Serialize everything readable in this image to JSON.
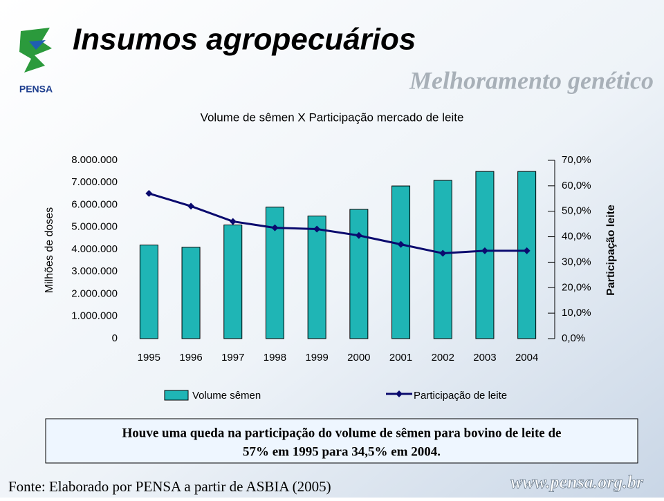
{
  "header": {
    "title": "Insumos agropecuários",
    "subtitle": "Melhoramento genético",
    "logo": "PENSA"
  },
  "chart_data": {
    "type": "bar",
    "title": "Volume de sêmen X Participação mercado de leite",
    "categories": [
      "1995",
      "1996",
      "1997",
      "1998",
      "1999",
      "2000",
      "2001",
      "2002",
      "2003",
      "2004"
    ],
    "series": [
      {
        "name": "Volume sêmen",
        "type": "bar",
        "color": "#1fb5b5",
        "values": [
          4200000,
          4100000,
          5100000,
          5900000,
          5500000,
          5800000,
          6850000,
          7100000,
          7500000,
          7500000
        ]
      },
      {
        "name": "Participação de leite",
        "type": "line",
        "axis": "y2",
        "color": "#0a0a6e",
        "values": [
          57,
          52,
          46,
          43.5,
          43,
          40.5,
          37,
          33.5,
          34.5,
          34.5
        ]
      }
    ],
    "y_label": "Milhões de doses",
    "y2_label": "Participação leite",
    "ylim": [
      0,
      8000000
    ],
    "yticks": [
      0,
      {
        "value": 1000000,
        "label": "1.000.000"
      },
      {
        "value": 2000000,
        "label": "2.000.000"
      },
      {
        "value": 3000000,
        "label": "3.000.000"
      },
      {
        "value": 4000000,
        "label": "4.000.000"
      },
      {
        "value": 5000000,
        "label": "5.000.000"
      },
      {
        "value": 6000000,
        "label": "6.000.000"
      },
      {
        "value": 7000000,
        "label": "7.000.000"
      },
      {
        "value": 8000000,
        "label": "8.000.000"
      }
    ],
    "y2lim": [
      0,
      70
    ],
    "y2ticks": [
      {
        "value": 0,
        "label": "0,0%"
      },
      {
        "value": 10,
        "label": "10,0%"
      },
      {
        "value": 20,
        "label": "20,0%"
      },
      {
        "value": 30,
        "label": "30,0%"
      },
      {
        "value": 40,
        "label": "40,0%"
      },
      {
        "value": 50,
        "label": "50,0%"
      },
      {
        "value": 60,
        "label": "60,0%"
      },
      {
        "value": 70,
        "label": "70,0%"
      }
    ],
    "legend": "bottom"
  },
  "note": [
    "Houve uma queda na participação do volume de sêmen para bovino de leite de",
    "57% em 1995 para 34,5% em 2004."
  ],
  "footer": {
    "source": "Fonte: Elaborado por PENSA a partir de ASBIA (2005)",
    "url": "www.pensa.org.br"
  }
}
